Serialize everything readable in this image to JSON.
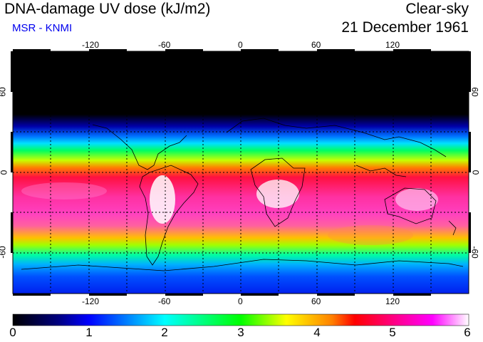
{
  "header": {
    "title": "DNA-damage UV dose (kJ/m2)",
    "subtitle": "MSR - KNMI",
    "sky_condition": "Clear-sky",
    "date": "21 December 1961"
  },
  "axes": {
    "lon_ticks": [
      "-120",
      "-60",
      "0",
      "60",
      "120"
    ],
    "lat_ticks": [
      "60",
      "0",
      "-60"
    ]
  },
  "colorbar": {
    "labels": [
      "0",
      "1",
      "2",
      "3",
      "4",
      "5",
      "6"
    ],
    "range": [
      0,
      6
    ],
    "stops": [
      "#000000",
      "#0000ff",
      "#00ffff",
      "#00ff00",
      "#ffff00",
      "#ff0000",
      "#ff00ff",
      "#ffffff"
    ]
  },
  "colors": {
    "subtitle": "#0000ee",
    "frame": "#000000",
    "grid": "#000000"
  }
}
